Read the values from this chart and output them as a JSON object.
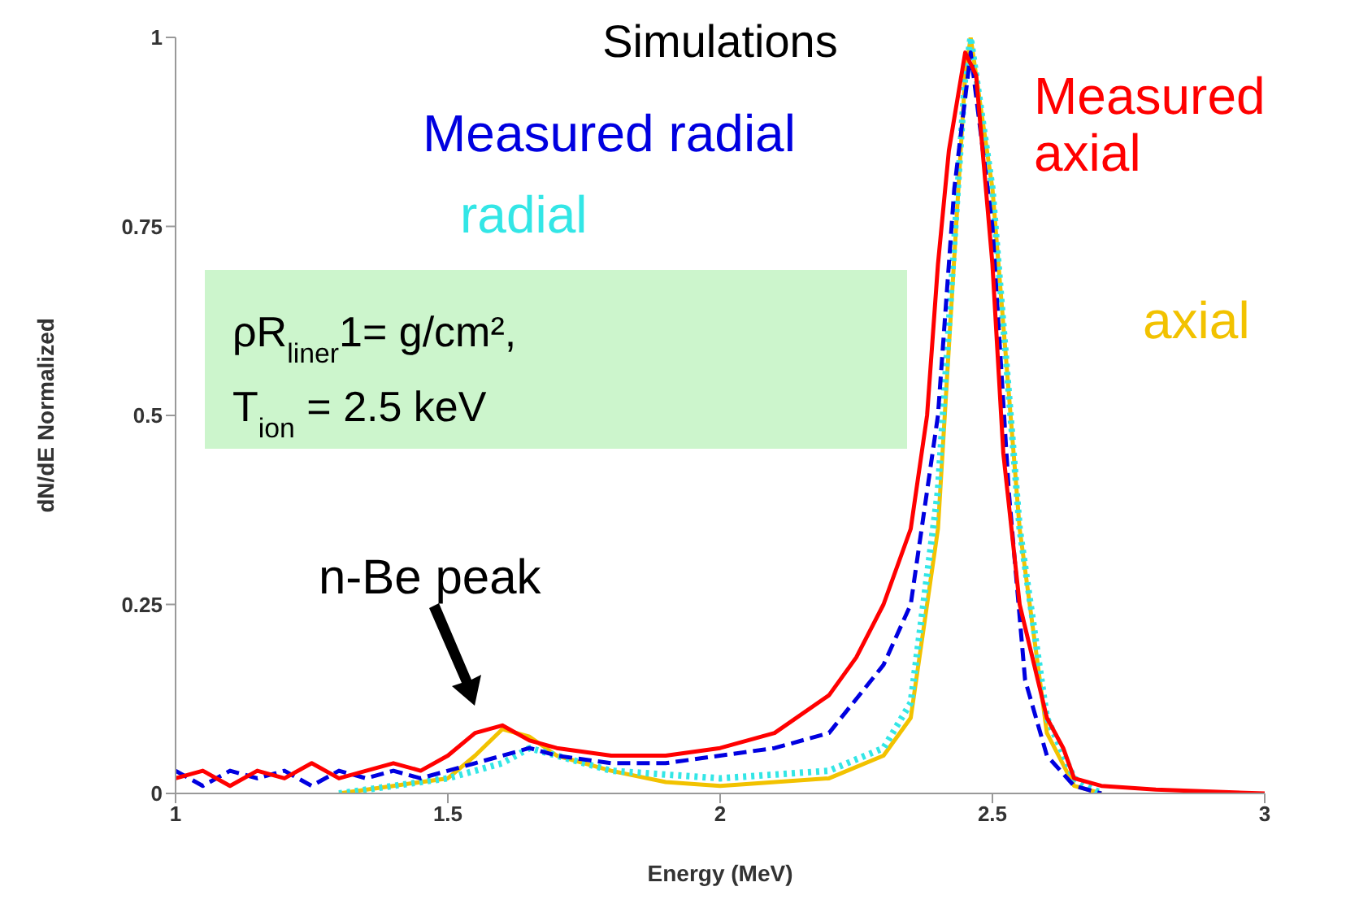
{
  "chart_data": {
    "type": "line",
    "title": "Simulations",
    "xlabel": "Energy (MeV)",
    "ylabel": "dN/dE Normalized",
    "xlim": [
      1,
      3
    ],
    "xticks": [
      1,
      1.5,
      2,
      2.5,
      3
    ],
    "ylim": [
      0,
      1
    ],
    "yticks": [
      0,
      0.25,
      0.5,
      0.75,
      1
    ],
    "marker": "none",
    "annotations": [
      "ρR$_{liner}$1= g/cm²,",
      "T$_{ion}$ = 2.5 keV",
      "n-Be peak"
    ],
    "series": [
      {
        "name": "Measured axial",
        "color": "#ff0000",
        "line_style": "solid",
        "x": [
          1.0,
          1.05,
          1.1,
          1.15,
          1.2,
          1.25,
          1.3,
          1.35,
          1.4,
          1.45,
          1.5,
          1.55,
          1.6,
          1.65,
          1.7,
          1.8,
          1.9,
          2.0,
          2.1,
          2.2,
          2.25,
          2.3,
          2.35,
          2.38,
          2.4,
          2.42,
          2.45,
          2.47,
          2.5,
          2.52,
          2.55,
          2.6,
          2.63,
          2.65,
          2.7,
          2.8,
          3.0
        ],
        "values": [
          0.02,
          0.03,
          0.01,
          0.03,
          0.02,
          0.04,
          0.02,
          0.03,
          0.04,
          0.03,
          0.05,
          0.08,
          0.09,
          0.07,
          0.06,
          0.05,
          0.05,
          0.06,
          0.08,
          0.13,
          0.18,
          0.25,
          0.35,
          0.5,
          0.7,
          0.85,
          0.98,
          0.95,
          0.7,
          0.45,
          0.25,
          0.1,
          0.06,
          0.02,
          0.01,
          0.005,
          0
        ]
      },
      {
        "name": "Measured radial",
        "color": "#0000e0",
        "line_style": "dashed",
        "x": [
          1.0,
          1.05,
          1.1,
          1.15,
          1.2,
          1.25,
          1.3,
          1.35,
          1.4,
          1.45,
          1.5,
          1.55,
          1.6,
          1.65,
          1.7,
          1.8,
          1.9,
          2.0,
          2.1,
          2.2,
          2.3,
          2.35,
          2.4,
          2.43,
          2.46,
          2.5,
          2.53,
          2.56,
          2.6,
          2.65,
          2.7
        ],
        "values": [
          0.03,
          0.01,
          0.03,
          0.02,
          0.03,
          0.01,
          0.03,
          0.02,
          0.03,
          0.02,
          0.03,
          0.04,
          0.05,
          0.06,
          0.05,
          0.04,
          0.04,
          0.05,
          0.06,
          0.08,
          0.17,
          0.25,
          0.5,
          0.8,
          0.98,
          0.75,
          0.4,
          0.15,
          0.05,
          0.01,
          0
        ]
      },
      {
        "name": "radial",
        "color": "#33e6e6",
        "line_style": "dotted",
        "x": [
          1.3,
          1.4,
          1.5,
          1.6,
          1.65,
          1.7,
          1.8,
          2.0,
          2.2,
          2.3,
          2.35,
          2.4,
          2.45,
          2.46,
          2.5,
          2.55,
          2.6,
          2.65,
          2.7
        ],
        "values": [
          0,
          0.01,
          0.02,
          0.04,
          0.06,
          0.05,
          0.03,
          0.02,
          0.03,
          0.06,
          0.12,
          0.4,
          0.95,
          1,
          0.8,
          0.35,
          0.1,
          0.02,
          0
        ]
      },
      {
        "name": "axial",
        "color": "#f2c200",
        "line_style": "solid",
        "x": [
          1.3,
          1.4,
          1.5,
          1.55,
          1.6,
          1.65,
          1.7,
          1.8,
          1.9,
          2.0,
          2.2,
          2.3,
          2.35,
          2.4,
          2.45,
          2.46,
          2.5,
          2.55,
          2.6,
          2.65,
          2.7
        ],
        "values": [
          0,
          0.01,
          0.02,
          0.05,
          0.085,
          0.075,
          0.05,
          0.03,
          0.015,
          0.01,
          0.02,
          0.05,
          0.1,
          0.35,
          0.95,
          1,
          0.8,
          0.35,
          0.08,
          0.01,
          0
        ]
      }
    ]
  }
}
